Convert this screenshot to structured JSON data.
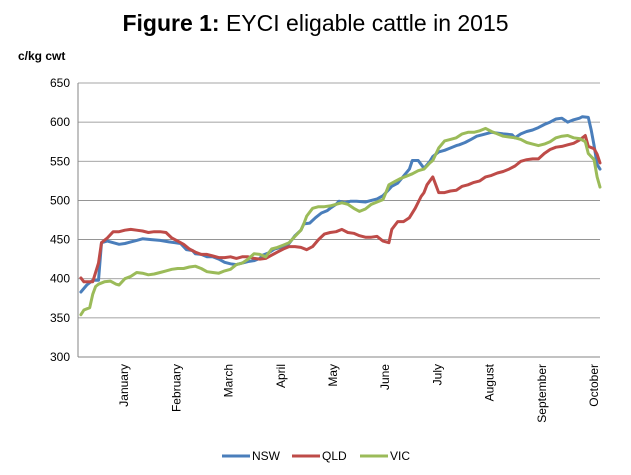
{
  "title": {
    "label": "Figure 1:",
    "text": "EYCI eligable cattle in 2015"
  },
  "chart_data": {
    "type": "line",
    "title": "Figure 1: EYCI eligable cattle in 2015",
    "ylabel": "c/kg cwt",
    "xlabel": "",
    "ylim": [
      300,
      650
    ],
    "yticks": [
      300,
      350,
      400,
      450,
      500,
      550,
      600,
      650
    ],
    "grid": true,
    "legend": "bottom",
    "x_tick_labels": [
      "January",
      "February",
      "March",
      "April",
      "May",
      "June",
      "July",
      "August",
      "September",
      "October"
    ],
    "series": [
      {
        "name": "NSW",
        "color": "#4a7ebb",
        "points": [
          [
            1,
            383
          ],
          [
            3,
            392
          ],
          [
            5,
            398
          ],
          [
            7,
            398
          ],
          [
            8,
            446
          ],
          [
            10,
            448
          ],
          [
            12,
            446
          ],
          [
            14,
            444
          ],
          [
            16,
            445
          ],
          [
            18,
            447
          ],
          [
            20,
            449
          ],
          [
            22,
            451
          ],
          [
            25,
            450
          ],
          [
            28,
            449
          ],
          [
            31,
            447
          ],
          [
            33,
            446
          ],
          [
            35,
            445
          ],
          [
            37,
            437
          ],
          [
            39,
            436
          ],
          [
            40,
            432
          ],
          [
            42,
            431
          ],
          [
            44,
            428
          ],
          [
            46,
            428
          ],
          [
            48,
            425
          ],
          [
            50,
            421
          ],
          [
            52,
            419
          ],
          [
            54,
            418
          ],
          [
            56,
            420
          ],
          [
            58,
            422
          ],
          [
            60,
            423
          ],
          [
            62,
            426
          ],
          [
            63,
            430
          ],
          [
            65,
            433
          ],
          [
            67,
            438
          ],
          [
            69,
            440
          ],
          [
            71,
            442
          ],
          [
            72,
            445
          ],
          [
            74,
            455
          ],
          [
            76,
            462
          ],
          [
            77,
            470
          ],
          [
            79,
            471
          ],
          [
            81,
            478
          ],
          [
            83,
            484
          ],
          [
            85,
            487
          ],
          [
            86,
            490
          ],
          [
            88,
            495
          ],
          [
            89,
            499
          ],
          [
            91,
            497
          ],
          [
            93,
            499
          ],
          [
            95,
            499
          ],
          [
            98,
            498
          ],
          [
            100,
            500
          ],
          [
            102,
            502
          ],
          [
            104,
            506
          ],
          [
            106,
            514
          ],
          [
            107,
            518
          ],
          [
            109,
            522
          ],
          [
            111,
            531
          ],
          [
            113,
            540
          ],
          [
            114,
            551
          ],
          [
            116,
            551
          ],
          [
            118,
            541
          ],
          [
            120,
            550
          ],
          [
            121,
            556
          ],
          [
            123,
            562
          ],
          [
            125,
            564
          ],
          [
            127,
            567
          ],
          [
            129,
            570
          ],
          [
            130,
            571
          ],
          [
            132,
            574
          ],
          [
            134,
            578
          ],
          [
            136,
            582
          ],
          [
            138,
            584
          ],
          [
            141,
            587
          ],
          [
            143,
            586
          ],
          [
            145,
            585
          ],
          [
            148,
            584
          ],
          [
            149,
            580
          ],
          [
            151,
            585
          ],
          [
            153,
            588
          ],
          [
            155,
            590
          ],
          [
            157,
            593
          ],
          [
            159,
            597
          ],
          [
            161,
            600
          ],
          [
            163,
            604
          ],
          [
            165,
            605
          ],
          [
            167,
            600
          ],
          [
            169,
            603
          ],
          [
            171,
            605
          ],
          [
            172,
            607
          ],
          [
            174,
            606
          ],
          [
            175,
            590
          ],
          [
            176,
            570
          ],
          [
            177,
            546
          ],
          [
            178,
            540
          ]
        ]
      },
      {
        "name": "QLD",
        "color": "#be4b48",
        "points": [
          [
            1,
            401
          ],
          [
            2,
            396
          ],
          [
            5,
            396
          ],
          [
            7,
            420
          ],
          [
            8,
            446
          ],
          [
            10,
            452
          ],
          [
            12,
            460
          ],
          [
            14,
            460
          ],
          [
            16,
            462
          ],
          [
            18,
            463
          ],
          [
            20,
            462
          ],
          [
            22,
            461
          ],
          [
            24,
            459
          ],
          [
            26,
            460
          ],
          [
            28,
            460
          ],
          [
            30,
            459
          ],
          [
            32,
            452
          ],
          [
            34,
            448
          ],
          [
            36,
            444
          ],
          [
            38,
            438
          ],
          [
            40,
            434
          ],
          [
            42,
            431
          ],
          [
            44,
            431
          ],
          [
            46,
            429
          ],
          [
            48,
            427
          ],
          [
            50,
            427
          ],
          [
            52,
            428
          ],
          [
            54,
            426
          ],
          [
            56,
            428
          ],
          [
            58,
            428
          ],
          [
            60,
            426
          ],
          [
            62,
            425
          ],
          [
            64,
            426
          ],
          [
            66,
            430
          ],
          [
            68,
            434
          ],
          [
            70,
            438
          ],
          [
            72,
            441
          ],
          [
            74,
            441
          ],
          [
            76,
            440
          ],
          [
            78,
            437
          ],
          [
            80,
            441
          ],
          [
            82,
            450
          ],
          [
            84,
            457
          ],
          [
            86,
            459
          ],
          [
            88,
            460
          ],
          [
            90,
            463
          ],
          [
            92,
            459
          ],
          [
            94,
            458
          ],
          [
            96,
            455
          ],
          [
            98,
            453
          ],
          [
            100,
            453
          ],
          [
            102,
            454
          ],
          [
            104,
            448
          ],
          [
            106,
            446
          ],
          [
            107,
            463
          ],
          [
            109,
            473
          ],
          [
            111,
            473
          ],
          [
            113,
            478
          ],
          [
            115,
            490
          ],
          [
            117,
            505
          ],
          [
            118,
            510
          ],
          [
            119,
            520
          ],
          [
            121,
            530
          ],
          [
            123,
            510
          ],
          [
            125,
            510
          ],
          [
            127,
            512
          ],
          [
            129,
            513
          ],
          [
            131,
            518
          ],
          [
            133,
            520
          ],
          [
            135,
            523
          ],
          [
            137,
            525
          ],
          [
            139,
            530
          ],
          [
            141,
            532
          ],
          [
            143,
            535
          ],
          [
            145,
            537
          ],
          [
            147,
            540
          ],
          [
            149,
            544
          ],
          [
            151,
            550
          ],
          [
            153,
            552
          ],
          [
            155,
            553
          ],
          [
            157,
            553
          ],
          [
            159,
            560
          ],
          [
            161,
            565
          ],
          [
            163,
            568
          ],
          [
            165,
            569
          ],
          [
            167,
            571
          ],
          [
            169,
            573
          ],
          [
            171,
            577
          ],
          [
            172,
            580
          ],
          [
            173,
            583
          ],
          [
            174,
            569
          ],
          [
            176,
            566
          ],
          [
            177,
            559
          ],
          [
            178,
            548
          ]
        ]
      },
      {
        "name": "VIC",
        "color": "#9bbb59",
        "points": [
          [
            1,
            354
          ],
          [
            2,
            360
          ],
          [
            4,
            363
          ],
          [
            5,
            380
          ],
          [
            6,
            390
          ],
          [
            7,
            393
          ],
          [
            9,
            396
          ],
          [
            11,
            397
          ],
          [
            13,
            393
          ],
          [
            14,
            392
          ],
          [
            16,
            400
          ],
          [
            18,
            403
          ],
          [
            20,
            408
          ],
          [
            22,
            407
          ],
          [
            24,
            405
          ],
          [
            26,
            406
          ],
          [
            28,
            408
          ],
          [
            30,
            410
          ],
          [
            32,
            412
          ],
          [
            34,
            413
          ],
          [
            36,
            413
          ],
          [
            38,
            415
          ],
          [
            40,
            416
          ],
          [
            42,
            413
          ],
          [
            44,
            409
          ],
          [
            46,
            408
          ],
          [
            48,
            407
          ],
          [
            50,
            410
          ],
          [
            52,
            412
          ],
          [
            54,
            418
          ],
          [
            56,
            420
          ],
          [
            58,
            425
          ],
          [
            60,
            432
          ],
          [
            62,
            431
          ],
          [
            64,
            428
          ],
          [
            66,
            438
          ],
          [
            68,
            440
          ],
          [
            70,
            443
          ],
          [
            72,
            446
          ],
          [
            74,
            454
          ],
          [
            76,
            462
          ],
          [
            77,
            470
          ],
          [
            78,
            480
          ],
          [
            80,
            490
          ],
          [
            82,
            492
          ],
          [
            84,
            492
          ],
          [
            86,
            493
          ],
          [
            88,
            495
          ],
          [
            90,
            497
          ],
          [
            92,
            495
          ],
          [
            94,
            490
          ],
          [
            96,
            486
          ],
          [
            98,
            489
          ],
          [
            100,
            495
          ],
          [
            102,
            498
          ],
          [
            104,
            501
          ],
          [
            105,
            510
          ],
          [
            106,
            520
          ],
          [
            108,
            524
          ],
          [
            110,
            528
          ],
          [
            112,
            531
          ],
          [
            114,
            534
          ],
          [
            116,
            538
          ],
          [
            118,
            540
          ],
          [
            120,
            548
          ],
          [
            121,
            551
          ],
          [
            123,
            567
          ],
          [
            125,
            576
          ],
          [
            127,
            578
          ],
          [
            129,
            580
          ],
          [
            131,
            585
          ],
          [
            133,
            587
          ],
          [
            135,
            587
          ],
          [
            137,
            589
          ],
          [
            139,
            592
          ],
          [
            141,
            588
          ],
          [
            143,
            585
          ],
          [
            145,
            582
          ],
          [
            147,
            581
          ],
          [
            149,
            580
          ],
          [
            151,
            578
          ],
          [
            153,
            574
          ],
          [
            155,
            572
          ],
          [
            157,
            570
          ],
          [
            159,
            572
          ],
          [
            161,
            575
          ],
          [
            163,
            580
          ],
          [
            165,
            582
          ],
          [
            167,
            583
          ],
          [
            169,
            580
          ],
          [
            171,
            579
          ],
          [
            173,
            575
          ],
          [
            174,
            560
          ],
          [
            176,
            552
          ],
          [
            177,
            530
          ],
          [
            178,
            517
          ]
        ]
      }
    ]
  }
}
